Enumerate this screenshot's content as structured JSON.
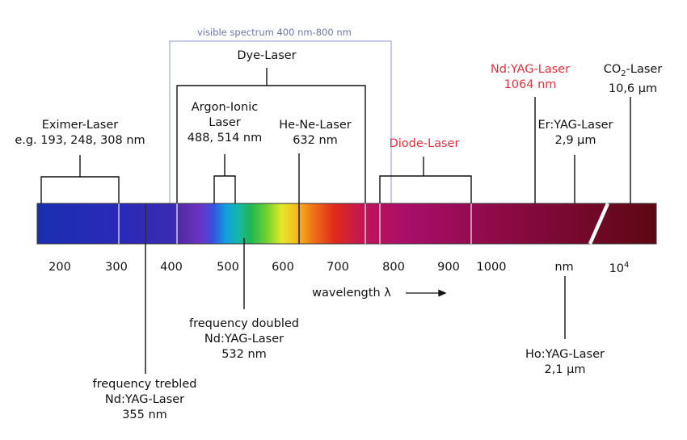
{
  "visible_spectrum": "visible spectrum 400 nm-800 nm",
  "dye_laser": "Dye-Laser",
  "eximer": {
    "line1": "Eximer-Laser",
    "line2": "e.g. 193, 248, 308 nm"
  },
  "argon": {
    "line1": "Argon-Ionic",
    "line2": "Laser",
    "line3": "488, 514 nm"
  },
  "heNe": {
    "line1": "He-Ne-Laser",
    "line2": "632 nm"
  },
  "diode": "Diode-Laser",
  "ndyag": {
    "line1": "Nd:YAG-Laser",
    "line2": "1064 nm"
  },
  "co2": {
    "line1a": "CO",
    "line1sub": "2",
    "line1b": "-Laser",
    "line2": "10,6 µm"
  },
  "eryag": {
    "line1": "Er:YAG-Laser",
    "line2": "2,9 µm"
  },
  "doubled": {
    "line1": "frequency doubled",
    "line2": "Nd:YAG-Laser",
    "line3": "532 nm"
  },
  "trebled": {
    "line1": "frequency trebled",
    "line2": "Nd:YAG-Laser",
    "line3": "355 nm"
  },
  "hoyag": {
    "line1": "Ho:YAG-Laser",
    "line2": "2,1 µm"
  },
  "axis": {
    "ticks": [
      "200",
      "300",
      "400",
      "500",
      "600",
      "700",
      "800",
      "900",
      "1000"
    ],
    "nm": "nm",
    "ten": "10",
    "ten_exp": "4",
    "wavelength_label": "wavelength λ"
  },
  "colors": {
    "red_label": "#e8303a",
    "visible_box": "#9fa3d8"
  }
}
